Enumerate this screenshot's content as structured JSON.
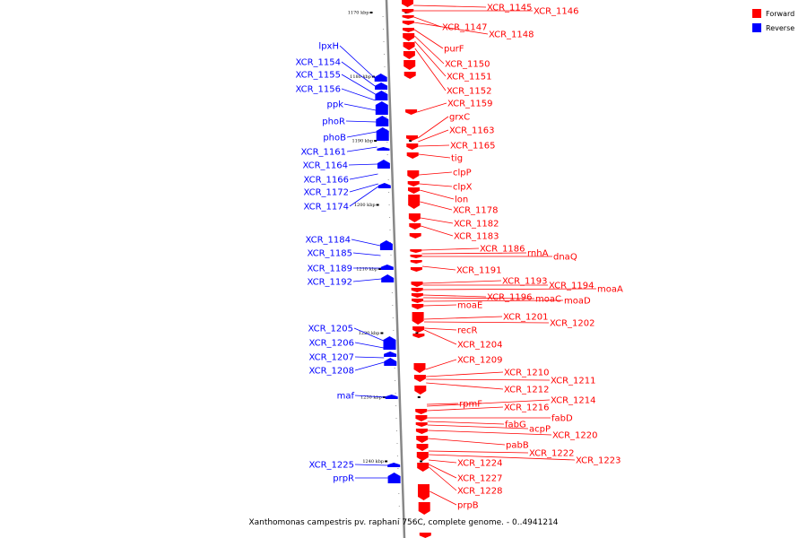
{
  "legend": [
    {
      "label": "Forward",
      "color": "#ff0000"
    },
    {
      "label": "Reverse",
      "color": "#0000ff"
    }
  ],
  "caption": "Xanthomonas campestris pv. raphani 756C, complete genome. - 0..4941214",
  "colors": {
    "forward": "#ff0000",
    "reverse": "#0000ff",
    "backbone": "#888888"
  },
  "ticks": [
    {
      "label": "1170 kbp",
      "kb": 1170
    },
    {
      "label": "1180 kbp",
      "kb": 1180
    },
    {
      "label": "1190 kbp",
      "kb": 1190
    },
    {
      "label": "1200 kbp",
      "kb": 1200
    },
    {
      "label": "1210 kbp",
      "kb": 1210
    },
    {
      "label": "1220 kbp",
      "kb": 1220
    },
    {
      "label": "1230 kbp",
      "kb": 1230
    },
    {
      "label": "1240 kbp",
      "kb": 1240
    }
  ],
  "forward_genes": [
    "XCR_1145",
    "XCR_1146",
    "XCR_1147",
    "XCR_1148",
    "purF",
    "XCR_1150",
    "XCR_1151",
    "XCR_1152",
    "XCR_1159",
    "grxC",
    "XCR_1163",
    "XCR_1165",
    "tig",
    "clpP",
    "clpX",
    "lon",
    "XCR_1178",
    "XCR_1182",
    "XCR_1183",
    "XCR_1186",
    "rnhA",
    "dnaQ",
    "XCR_1191",
    "XCR_1193",
    "XCR_1194",
    "moaA",
    "XCR_1196",
    "moaC",
    "moaD",
    "moaE",
    "XCR_1201",
    "XCR_1202",
    "recR",
    "XCR_1204",
    "XCR_1209",
    "XCR_1210",
    "XCR_1211",
    "XCR_1212",
    "rpmF",
    "XCR_1214",
    "XCR_1216",
    "fabD",
    "fabG",
    "acpP",
    "XCR_1220",
    "pabB",
    "XCR_1222",
    "XCR_1223",
    "XCR_1224",
    "XCR_1227",
    "XCR_1228",
    "prpB"
  ],
  "reverse_genes": [
    "lpxH",
    "XCR_1154",
    "XCR_1155",
    "XCR_1156",
    "ppk",
    "phoR",
    "phoB",
    "XCR_1161",
    "XCR_1164",
    "XCR_1166",
    "XCR_1172",
    "XCR_1174",
    "XCR_1184",
    "XCR_1185",
    "XCR_1189",
    "XCR_1192",
    "XCR_1205",
    "XCR_1206",
    "XCR_1207",
    "XCR_1208",
    "maf",
    "XCR_1225",
    "prpR"
  ]
}
